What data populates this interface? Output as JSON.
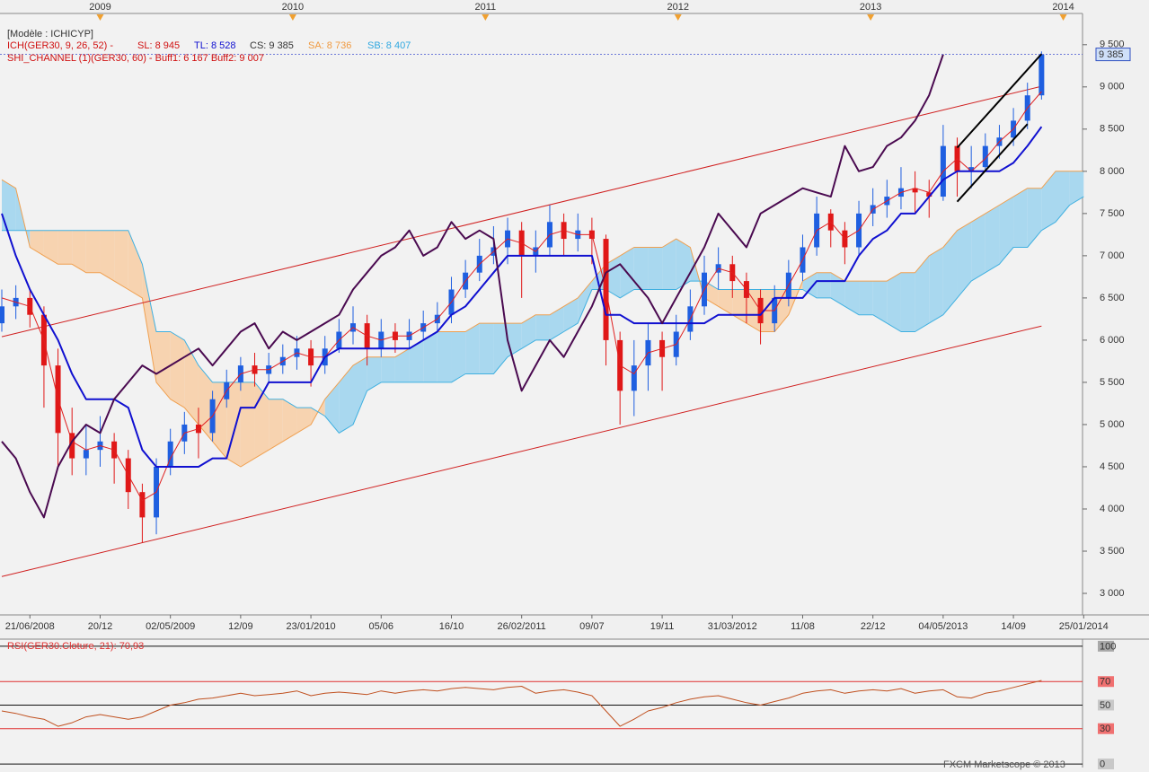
{
  "chart_data": [
    {
      "type": "candlestick",
      "header": "[Modèle : ICHICYP]",
      "legend": [
        {
          "text": "ICH(GER30, 9, 26, 52) -",
          "color": "#d01010"
        },
        {
          "text": "SL: 8 945",
          "color": "#d01010"
        },
        {
          "text": "TL: 8 528",
          "color": "#1010d0"
        },
        {
          "text": "CS: 9 385",
          "color": "#333333"
        },
        {
          "text": "SA: 8 736",
          "color": "#f09a40"
        },
        {
          "text": "SB: 8 407",
          "color": "#30a8e0"
        },
        {
          "text": "SHI_CHANNEL (1)(GER30, 60) -  Buff1: 6 167  Buff2: 9 007",
          "color": "#d01010"
        }
      ],
      "categories": [
        null,
        null,
        "21/06/2008",
        null,
        null,
        null,
        null,
        "20/12",
        null,
        null,
        null,
        null,
        "02/05/2009",
        null,
        null,
        null,
        null,
        "12/09",
        null,
        null,
        null,
        null,
        "23/01/2010",
        null,
        null,
        null,
        null,
        "05/06",
        null,
        null,
        null,
        null,
        "16/10",
        null,
        null,
        null,
        null,
        "26/02/2011",
        null,
        null,
        null,
        null,
        "09/07",
        null,
        null,
        null,
        null,
        "19/11",
        null,
        null,
        null,
        null,
        "31/03/2012",
        null,
        null,
        null,
        null,
        "11/08",
        null,
        null,
        null,
        null,
        "22/12",
        null,
        null,
        null,
        null,
        "04/05/2013",
        null,
        null,
        null,
        null,
        "14/09",
        null,
        null,
        null,
        null,
        "25/01/2014"
      ],
      "open": [
        6200,
        6400,
        6500,
        6300,
        5700,
        4900,
        4600,
        4700,
        4800,
        4600,
        4200,
        3900,
        4500,
        4800,
        5000,
        4900,
        5300,
        5500,
        5700,
        5600,
        5700,
        5800,
        5900,
        5700,
        5900,
        6100,
        6200,
        5900,
        6100,
        6000,
        6100,
        6200,
        6300,
        6600,
        6800,
        7000,
        7100,
        7300,
        7000,
        7100,
        7400,
        7200,
        7300,
        7200,
        6000,
        5400,
        5700,
        6000,
        5800,
        6100,
        6400,
        6800,
        6900,
        6700,
        6500,
        6200,
        6500,
        6800,
        7100,
        7500,
        7300,
        7100,
        7500,
        7600,
        7700,
        7800,
        7750,
        7700,
        8300,
        8000,
        8050,
        8300,
        8400,
        8600,
        8900,
        null,
        null,
        null
      ],
      "high": [
        6600,
        6650,
        6600,
        6400,
        5900,
        5200,
        5000,
        5100,
        4900,
        4700,
        4300,
        4600,
        4950,
        5150,
        5200,
        5400,
        5650,
        5800,
        5850,
        5850,
        5950,
        6050,
        6000,
        6050,
        6250,
        6400,
        6300,
        6250,
        6200,
        6250,
        6350,
        6450,
        6750,
        6950,
        7200,
        7350,
        7450,
        7400,
        7300,
        7600,
        7500,
        7500,
        7450,
        7250,
        6100,
        6000,
        6200,
        6100,
        6300,
        6600,
        7000,
        7100,
        7000,
        6800,
        6600,
        6650,
        6950,
        7250,
        7700,
        7550,
        7400,
        7650,
        7800,
        7900,
        8050,
        8000,
        7900,
        8550,
        8400,
        8300,
        8450,
        8550,
        8750,
        9050,
        9420,
        null,
        null,
        null
      ],
      "low": [
        6100,
        6250,
        6150,
        5200,
        4500,
        4400,
        4400,
        4500,
        4300,
        4000,
        3600,
        3700,
        4400,
        4650,
        4600,
        4800,
        5200,
        5400,
        5450,
        5500,
        5600,
        5650,
        5450,
        5600,
        5850,
        5950,
        5700,
        5800,
        5850,
        5900,
        6000,
        6100,
        6200,
        6500,
        6700,
        6900,
        6900,
        6500,
        6800,
        7000,
        7000,
        7050,
        6900,
        5700,
        5000,
        5100,
        5400,
        5400,
        5700,
        6000,
        6300,
        6600,
        6500,
        6200,
        5950,
        6100,
        6400,
        6700,
        7000,
        7100,
        6900,
        7000,
        7350,
        7450,
        7550,
        7500,
        7450,
        7650,
        7700,
        7800,
        8000,
        8150,
        8300,
        8500,
        8850,
        null,
        null,
        null
      ],
      "close": [
        6400,
        6500,
        6300,
        5700,
        4900,
        4600,
        4700,
        4800,
        4600,
        4200,
        3900,
        4500,
        4800,
        5000,
        4900,
        5300,
        5500,
        5700,
        5600,
        5700,
        5800,
        5900,
        5700,
        5900,
        6100,
        6200,
        5900,
        6100,
        6000,
        6100,
        6200,
        6300,
        6600,
        6800,
        7000,
        7100,
        7300,
        7000,
        7100,
        7400,
        7200,
        7300,
        7200,
        6000,
        5400,
        5700,
        6000,
        5800,
        6100,
        6400,
        6800,
        6900,
        6700,
        6500,
        6200,
        6500,
        6800,
        7100,
        7500,
        7300,
        7100,
        7500,
        7600,
        7700,
        7800,
        7750,
        7700,
        8300,
        8000,
        8050,
        8300,
        8400,
        8600,
        8900,
        9385,
        null,
        null,
        null
      ],
      "up_color": "#1f5fe0",
      "down_color": "#e01818",
      "last_close_label": "9 385",
      "series": [
        {
          "color": "#e02020",
          "width": 1,
          "values": [
            6500,
            6450,
            6400,
            6000,
            5300,
            4800,
            4700,
            4750,
            4700,
            4400,
            4100,
            4200,
            4600,
            4900,
            4950,
            5100,
            5400,
            5600,
            5650,
            5650,
            5750,
            5850,
            5800,
            5800,
            6000,
            6150,
            6050,
            6000,
            6050,
            6050,
            6150,
            6250,
            6450,
            6700,
            6900,
            7050,
            7200,
            7150,
            7050,
            7250,
            7300,
            7250,
            7250,
            6600,
            5700,
            5600,
            5850,
            5900,
            5950,
            6250,
            6600,
            6850,
            6800,
            6600,
            6350,
            6350,
            6650,
            6950,
            7300,
            7400,
            7200,
            7300,
            7550,
            7650,
            7750,
            7800,
            7750,
            8000,
            8150,
            8000,
            8150,
            8350,
            8500,
            8750,
            8945,
            null,
            null,
            null
          ]
        },
        {
          "color": "#1010d0",
          "width": 2,
          "values": [
            7500,
            7000,
            6600,
            6300,
            6000,
            5600,
            5300,
            5300,
            5300,
            5200,
            4700,
            4500,
            4500,
            4500,
            4500,
            4600,
            4600,
            5200,
            5200,
            5500,
            5500,
            5500,
            5500,
            5800,
            5900,
            5900,
            5900,
            5900,
            5900,
            5900,
            6000,
            6100,
            6300,
            6400,
            6600,
            6800,
            7000,
            7000,
            7000,
            7000,
            7000,
            7000,
            7000,
            6300,
            6300,
            6200,
            6200,
            6200,
            6200,
            6200,
            6200,
            6300,
            6300,
            6300,
            6300,
            6500,
            6500,
            6500,
            6700,
            6700,
            6700,
            7000,
            7200,
            7300,
            7500,
            7500,
            7700,
            7900,
            8000,
            8000,
            8000,
            8000,
            8100,
            8300,
            8528,
            null,
            null,
            null
          ]
        },
        {
          "color": "#4a0a50",
          "width": 2,
          "values": [
            4800,
            4600,
            4200,
            3900,
            4500,
            4800,
            5000,
            4900,
            5300,
            5500,
            5700,
            5600,
            5700,
            5800,
            5900,
            5700,
            5900,
            6100,
            6200,
            5900,
            6100,
            6000,
            6100,
            6200,
            6300,
            6600,
            6800,
            7000,
            7100,
            7300,
            7000,
            7100,
            7400,
            7200,
            7300,
            7200,
            6000,
            5400,
            5700,
            6000,
            5800,
            6100,
            6400,
            6800,
            6900,
            6700,
            6500,
            6200,
            6500,
            6800,
            7100,
            7500,
            7300,
            7100,
            7500,
            7600,
            7700,
            7800,
            7750,
            7700,
            8300,
            8000,
            8050,
            8300,
            8400,
            8600,
            8900,
            9385,
            null,
            null,
            null,
            null,
            null,
            null,
            null,
            null,
            null,
            null
          ]
        }
      ],
      "cloud": {
        "a": {
          "color": "#f0a050",
          "values": [
            7900,
            7800,
            7100,
            7000,
            6900,
            6900,
            6800,
            6800,
            6700,
            6600,
            6500,
            5500,
            5300,
            5200,
            5000,
            4800,
            4600,
            4500,
            4600,
            4700,
            4800,
            4900,
            5000,
            5300,
            5500,
            5700,
            5800,
            5800,
            5800,
            5900,
            6000,
            6100,
            6100,
            6100,
            6200,
            6200,
            6200,
            6200,
            6300,
            6300,
            6400,
            6500,
            6700,
            6900,
            7000,
            7100,
            7100,
            7100,
            7200,
            7100,
            6500,
            6400,
            6300,
            6200,
            6100,
            6100,
            6300,
            6700,
            6800,
            6800,
            6700,
            6700,
            6700,
            6700,
            6800,
            6800,
            7000,
            7100,
            7300,
            7400,
            7500,
            7600,
            7700,
            7800,
            7800,
            8000,
            8000,
            8000
          ]
        },
        "b": {
          "color": "#40b0e0",
          "values": [
            7300,
            7300,
            7300,
            7300,
            7300,
            7300,
            7300,
            7300,
            7300,
            7300,
            6900,
            6100,
            6100,
            6000,
            5700,
            5500,
            5500,
            5500,
            5500,
            5300,
            5300,
            5200,
            5200,
            5100,
            4900,
            5000,
            5400,
            5500,
            5500,
            5500,
            5500,
            5500,
            5500,
            5600,
            5600,
            5600,
            5800,
            5900,
            6000,
            6000,
            6100,
            6200,
            6600,
            6600,
            6500,
            6600,
            6600,
            6600,
            6600,
            6700,
            6700,
            6600,
            6600,
            6600,
            6600,
            6600,
            6600,
            6600,
            6500,
            6500,
            6400,
            6300,
            6300,
            6200,
            6100,
            6100,
            6200,
            6300,
            6500,
            6700,
            6800,
            6900,
            7100,
            7100,
            7300,
            7400,
            7600,
            7700
          ]
        },
        "up_fill": "#a9d8ef",
        "down_fill": "#f7d3b0"
      },
      "channel": {
        "color": "#d02020",
        "from": 0,
        "to": 74,
        "upper": [
          6040,
          9007
        ],
        "lower": [
          3200,
          6167
        ]
      },
      "trendlines": [
        {
          "from": 68,
          "to": 74,
          "values": [
            8280,
            9390
          ]
        },
        {
          "from": 68,
          "to": 73,
          "values": [
            7640,
            8560
          ]
        }
      ],
      "ylim": [
        2745,
        9870
      ],
      "yticks": [
        {
          "value": 3000,
          "label": "3 000"
        },
        {
          "value": 3500,
          "label": "3 500"
        },
        {
          "value": 4000,
          "label": "4 000"
        },
        {
          "value": 4500,
          "label": "4 500"
        },
        {
          "value": 5000,
          "label": "5 000"
        },
        {
          "value": 5500,
          "label": "5 500"
        },
        {
          "value": 6000,
          "label": "6 000"
        },
        {
          "value": 6500,
          "label": "6 500"
        },
        {
          "value": 7000,
          "label": "7 000"
        },
        {
          "value": 7500,
          "label": "7 500"
        },
        {
          "value": 8000,
          "label": "8 000"
        },
        {
          "value": 8500,
          "label": "8 500"
        },
        {
          "value": 9000,
          "label": "9 000"
        },
        {
          "value": 9500,
          "label": "9 500"
        }
      ],
      "x2lim": [
        2008.48,
        2014.1
      ],
      "x2ticks": [
        2009,
        2010,
        2011,
        2012,
        2013,
        2014
      ]
    },
    {
      "type": "line",
      "title": "RSI(GER30.Cloture, 21): 70,93",
      "color": "#c0501f",
      "values": [
        45,
        43,
        40,
        38,
        32,
        35,
        40,
        42,
        40,
        38,
        40,
        45,
        50,
        52,
        55,
        56,
        58,
        60,
        58,
        59,
        60,
        62,
        58,
        60,
        61,
        60,
        59,
        62,
        60,
        62,
        63,
        62,
        64,
        65,
        64,
        63,
        65,
        66,
        60,
        62,
        63,
        61,
        58,
        45,
        32,
        38,
        45,
        48,
        52,
        55,
        57,
        58,
        55,
        52,
        50,
        53,
        56,
        60,
        62,
        63,
        60,
        62,
        63,
        62,
        64,
        60,
        62,
        63,
        57,
        56,
        60,
        62,
        65,
        68,
        70.93,
        null,
        null,
        null
      ],
      "ylim": [
        -3,
        106
      ],
      "yticks": [
        0,
        30,
        50,
        70,
        100
      ],
      "ytick_colors": [
        "#111111",
        "#e03030",
        "#111111",
        "#e03030",
        "#111111"
      ],
      "ytick_fills": [
        "#c8c8c8",
        "#f07070",
        "#c8c8c8",
        "#f07070",
        "#a8a8a8"
      ]
    },
    {
      "footer": "FXCM Marketscope © 2013"
    }
  ]
}
